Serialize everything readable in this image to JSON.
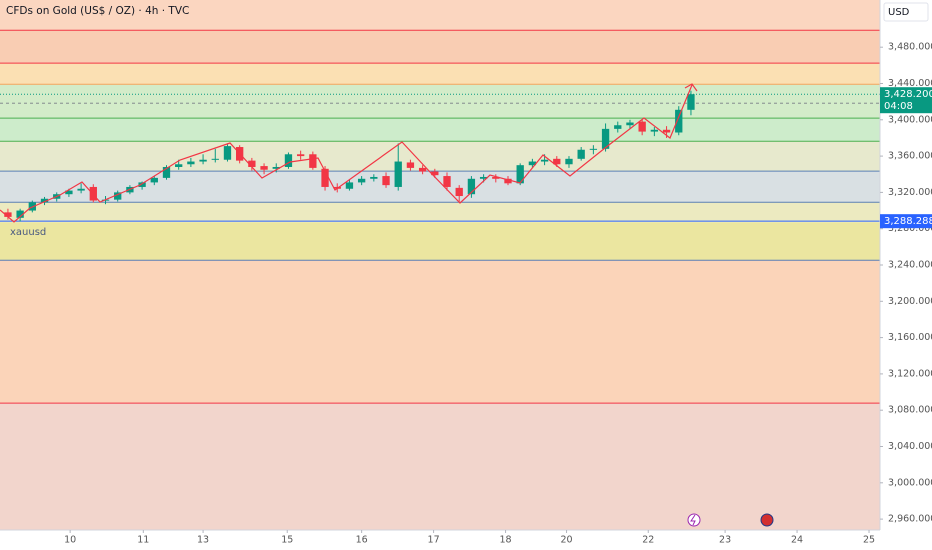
{
  "chart_data": {
    "type": "candlestick",
    "title": "CFDs on Gold (US$ / OZ) · 4h · TVC",
    "currency": "USD",
    "symbol_label": "xauusd",
    "up_color": "#089981",
    "down_color": "#f23645",
    "ylim": [
      2948,
      3532
    ],
    "yticks": [
      {
        "value": 2960,
        "label": "2,960.000"
      },
      {
        "value": 3000,
        "label": "3,000.000"
      },
      {
        "value": 3040,
        "label": "3,040.000"
      },
      {
        "value": 3080,
        "label": "3,080.000"
      },
      {
        "value": 3120,
        "label": "3,120.000"
      },
      {
        "value": 3160,
        "label": "3,160.000"
      },
      {
        "value": 3200,
        "label": "3,200.000"
      },
      {
        "value": 3240,
        "label": "3,240.000"
      },
      {
        "value": 3280,
        "label": "3,280.000"
      },
      {
        "value": 3320,
        "label": "3,320.000"
      },
      {
        "value": 3360,
        "label": "3,360.000"
      },
      {
        "value": 3400,
        "label": "3,400.000"
      },
      {
        "value": 3440,
        "label": "3,440.000"
      },
      {
        "value": 3480,
        "label": "3,480.000"
      }
    ],
    "xlim": [
      -0.65,
      71.5
    ],
    "xticks": [
      {
        "value": 5.1,
        "label": "10"
      },
      {
        "value": 11.1,
        "label": "11"
      },
      {
        "value": 16,
        "label": "13"
      },
      {
        "value": 22.9,
        "label": "15"
      },
      {
        "value": 29,
        "label": "16"
      },
      {
        "value": 34.9,
        "label": "17"
      },
      {
        "value": 40.8,
        "label": "18"
      },
      {
        "value": 45.8,
        "label": "20"
      },
      {
        "value": 52.5,
        "label": "22"
      },
      {
        "value": 58.8,
        "label": "23"
      },
      {
        "value": 64.7,
        "label": "24"
      },
      {
        "value": 70.6,
        "label": "25"
      }
    ],
    "open": [
      3298,
      3292,
      3300,
      3309,
      3313,
      3318,
      3322,
      3326,
      3311,
      3312,
      3320,
      3326,
      3331,
      3336,
      3348,
      3351,
      3354,
      3356,
      3356,
      3370,
      3355,
      3349,
      3346,
      3348,
      3362,
      3362,
      3346,
      3326,
      3324,
      3331,
      3335,
      3338,
      3326,
      3353,
      3347,
      3343,
      3338,
      3325,
      3318,
      3335,
      3337,
      3335,
      3330,
      3350,
      3354,
      3357,
      3351,
      3357,
      3367,
      3368,
      3390,
      3394,
      3398,
      3387,
      3389,
      3386,
      3411
    ],
    "high": [
      3302,
      3302,
      3311,
      3315,
      3320,
      3324,
      3330,
      3329,
      3316,
      3322,
      3328,
      3332,
      3338,
      3350,
      3356,
      3358,
      3362,
      3368,
      3374,
      3372,
      3358,
      3352,
      3352,
      3364,
      3366,
      3365,
      3349,
      3330,
      3334,
      3338,
      3340,
      3342,
      3374,
      3356,
      3350,
      3346,
      3342,
      3328,
      3338,
      3340,
      3340,
      3338,
      3352,
      3357,
      3362,
      3360,
      3360,
      3370,
      3372,
      3396,
      3398,
      3400,
      3400,
      3392,
      3393,
      3415,
      3432
    ],
    "low": [
      3290,
      3288,
      3298,
      3306,
      3310,
      3315,
      3319,
      3309,
      3307,
      3310,
      3318,
      3323,
      3328,
      3334,
      3345,
      3348,
      3351,
      3353,
      3354,
      3352,
      3344,
      3340,
      3342,
      3346,
      3356,
      3345,
      3322,
      3320,
      3322,
      3328,
      3332,
      3325,
      3322,
      3344,
      3340,
      3336,
      3322,
      3310,
      3314,
      3331,
      3331,
      3328,
      3328,
      3347,
      3350,
      3348,
      3347,
      3355,
      3362,
      3365,
      3386,
      3390,
      3383,
      3382,
      3380,
      3383,
      3405
    ],
    "close": [
      3293,
      3300,
      3309,
      3313,
      3318,
      3322,
      3324,
      3311,
      3312,
      3320,
      3326,
      3331,
      3336,
      3348,
      3351,
      3354,
      3356,
      3357,
      3371,
      3355,
      3348,
      3345,
      3348,
      3362,
      3360,
      3347,
      3326,
      3324,
      3331,
      3335,
      3337,
      3328,
      3354,
      3347,
      3343,
      3339,
      3326,
      3316,
      3335,
      3337,
      3335,
      3330,
      3350,
      3354,
      3356,
      3351,
      3357,
      3367,
      3368,
      3390,
      3394,
      3397,
      3387,
      3389,
      3386,
      3411,
      3428.2
    ],
    "zones": [
      {
        "low": 3498.7,
        "high": 3532,
        "color": "#fbd6c0"
      },
      {
        "low": 3462.4,
        "high": 3498.7,
        "color": "#f9cdb3"
      },
      {
        "low": 3439.2,
        "high": 3462.4,
        "color": "#fbe0b3"
      },
      {
        "low": 3401.8,
        "high": 3439.2,
        "color": "#d3ecc9"
      },
      {
        "low": 3376.4,
        "high": 3401.8,
        "color": "#cdeccb"
      },
      {
        "low": 3343.4,
        "high": 3376.4,
        "color": "#e7e9cd"
      },
      {
        "low": 3309.2,
        "high": 3343.4,
        "color": "#d9e0e3"
      },
      {
        "low": 3287.2,
        "high": 3309.2,
        "color": "#eceac0"
      },
      {
        "low": 3245.3,
        "high": 3287.2,
        "color": "#ebe6a0"
      },
      {
        "low": 3087.8,
        "high": 3245.3,
        "color": "#fbd4b9"
      },
      {
        "low": 2948,
        "high": 3087.8,
        "color": "#f2d5cc"
      }
    ],
    "levels": [
      {
        "value": 3498.7,
        "color": "#f23645"
      },
      {
        "value": 3462.4,
        "color": "#f23645"
      },
      {
        "value": 3439.2,
        "color": "#f7a35c"
      },
      {
        "value": 3401.8,
        "color": "#4caf50"
      },
      {
        "value": 3376.4,
        "color": "#4caf50"
      },
      {
        "value": 3343.4,
        "color": "#5b7fb5"
      },
      {
        "value": 3309.2,
        "color": "#5b7fb5"
      },
      {
        "value": 3245.3,
        "color": "#5b7fb5"
      },
      {
        "value": 3087.8,
        "color": "#f23645"
      }
    ],
    "dashed_levels": [
      3418.3
    ],
    "last_price": {
      "value": 3428.2,
      "label": "3,428.200"
    },
    "countdown": "04:08",
    "marker_price": {
      "value": 3288.288,
      "label": "3,288.288"
    }
  }
}
